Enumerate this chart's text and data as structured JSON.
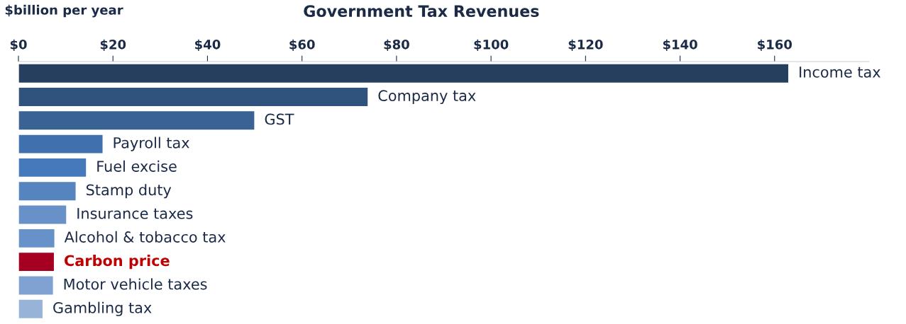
{
  "chart_data": {
    "type": "bar",
    "orientation": "horizontal",
    "title": "Government Tax Revenues",
    "xlabel": "$billion per year",
    "categories": [
      "Income tax",
      "Company tax",
      "GST",
      "Payroll tax",
      "Fuel excise",
      "Stamp duty",
      "Insurance taxes",
      "Alcohol & tobacco tax",
      "Carbon price",
      "Motor vehicle taxes",
      "Gambling tax"
    ],
    "values": [
      163,
      74,
      50,
      17.9,
      14.4,
      12.2,
      10.2,
      7.7,
      7.6,
      7.4,
      5.2
    ],
    "colors": [
      "#263f5f",
      "#30537d",
      "#3a6293",
      "#4070ad",
      "#4679bc",
      "#5584bf",
      "#6891c8",
      "#6692c9",
      "#a50021",
      "#7fa2d2",
      "#98b3d8"
    ],
    "xticks": [
      {
        "value": 0,
        "label": "$0"
      },
      {
        "value": 20,
        "label": "$20"
      },
      {
        "value": 40,
        "label": "$40"
      },
      {
        "value": 60,
        "label": "$60"
      },
      {
        "value": 80,
        "label": "$80"
      },
      {
        "value": 100,
        "label": "$100"
      },
      {
        "value": 120,
        "label": "$120"
      },
      {
        "value": 140,
        "label": "$140"
      },
      {
        "value": 160,
        "label": "$160"
      }
    ],
    "xlim": [
      0,
      180
    ],
    "grid": false,
    "legend": false
  }
}
